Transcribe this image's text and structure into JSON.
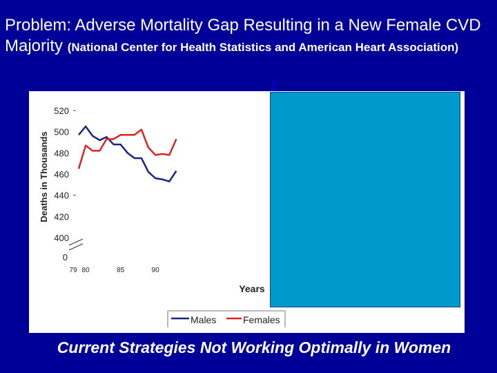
{
  "slide": {
    "title_main": "Problem: Adverse Mortality Gap Resulting in a New Female CVD Majority",
    "title_source": "(National Center for Health Statistics and American Heart Association)",
    "footer": "Current Strategies Not Working Optimally in Women"
  },
  "colors": {
    "background": "#000099",
    "males": "#1a237e",
    "females": "#dd2222",
    "overlay": "#0099cc"
  },
  "chart_data": {
    "type": "line",
    "title": "",
    "xlabel": "Years",
    "ylabel": "Deaths in Thousands",
    "x": [
      79,
      80,
      81,
      82,
      83,
      84,
      85,
      86,
      87,
      88,
      89,
      90,
      91,
      92,
      93
    ],
    "x_ticks": [
      {
        "value": 79,
        "label": "79"
      },
      {
        "value": 80,
        "label": "80"
      },
      {
        "value": 85,
        "label": "85"
      },
      {
        "value": 90,
        "label": "90"
      }
    ],
    "y_ticks": [
      "520",
      "500",
      "480",
      "460",
      "440",
      "420",
      "400"
    ],
    "y_zero_label": "0",
    "ylim": [
      400,
      520
    ],
    "series": [
      {
        "name": "Males",
        "values": [
          497,
          505,
          496,
          492,
          495,
          488,
          488,
          480,
          475,
          475,
          462,
          456,
          455,
          453,
          463
        ]
      },
      {
        "name": "Females",
        "values": [
          465,
          487,
          482,
          482,
          493,
          493,
          497,
          497,
          497,
          502,
          485,
          478,
          479,
          478,
          493
        ]
      }
    ],
    "legend": [
      "Males",
      "Females"
    ],
    "legend_position": "bottom-center"
  }
}
